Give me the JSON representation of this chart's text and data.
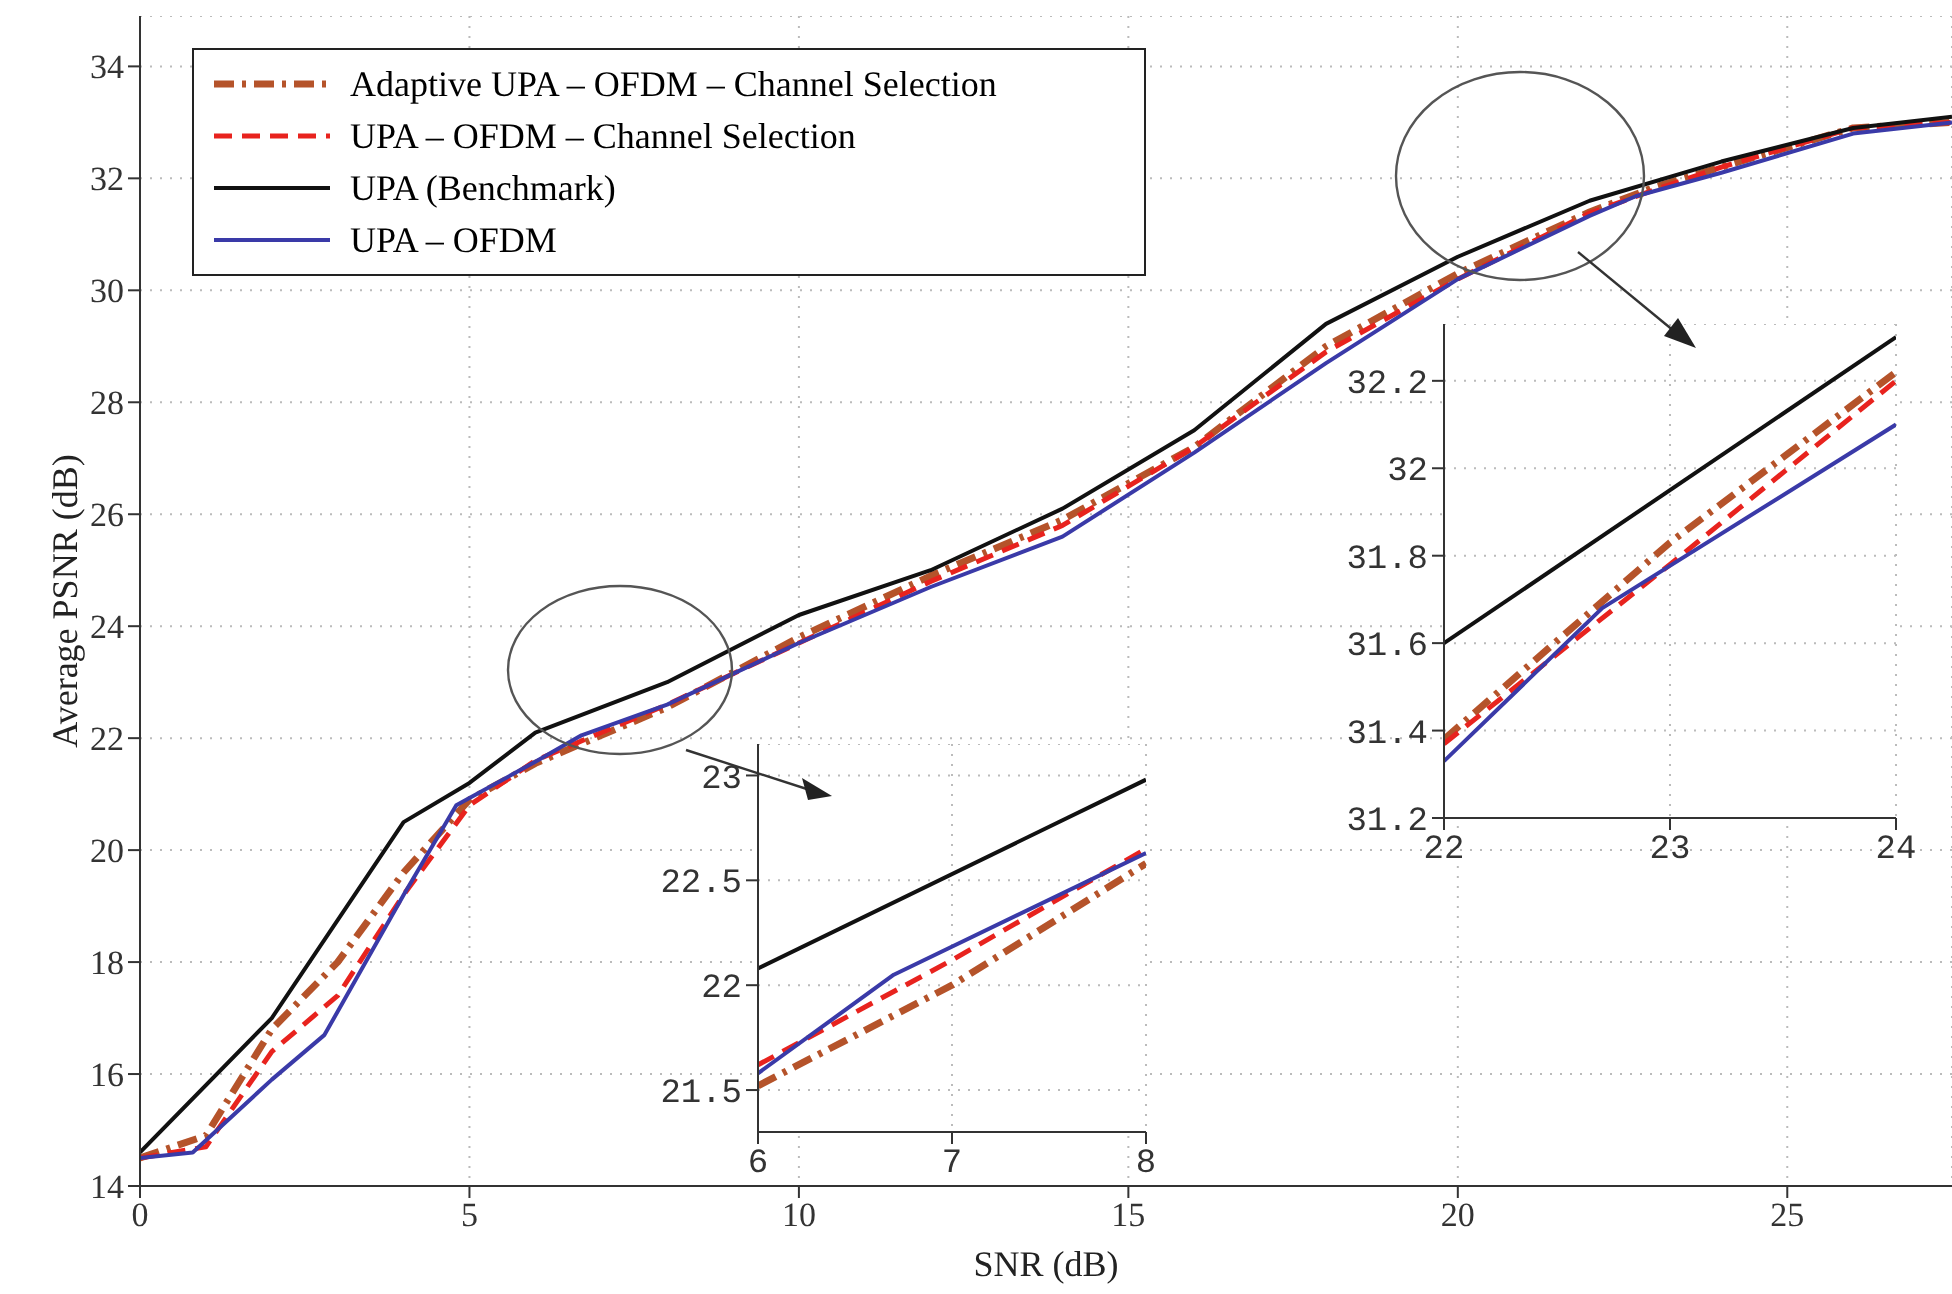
{
  "chart_data": [
    {
      "type": "line",
      "xlabel": "SNR (dB)",
      "ylabel": "Average PSNR (dB)",
      "xlim": [
        0,
        27.5
      ],
      "ylim": [
        14,
        34.9
      ],
      "xticks": [
        0,
        5,
        10,
        15,
        20,
        25
      ],
      "yticks": [
        14,
        16,
        18,
        20,
        22,
        24,
        26,
        28,
        30,
        32,
        34
      ],
      "grid": true,
      "legend": "top left",
      "marker": "none",
      "series": [
        {
          "name": "Adaptive UPA – OFDM – Channel Selection",
          "color": "#b5532a",
          "line_style": "dashdot",
          "x": [
            0,
            1,
            2,
            3,
            4,
            5,
            6,
            7,
            8,
            10,
            12,
            14,
            16,
            18,
            20,
            22,
            23,
            24,
            26,
            27.5
          ],
          "values": [
            14.5,
            14.9,
            16.8,
            18.0,
            19.6,
            20.9,
            21.55,
            22.05,
            22.55,
            23.8,
            24.9,
            25.9,
            27.2,
            29.0,
            30.3,
            31.4,
            31.85,
            32.2,
            32.9,
            33.0
          ]
        },
        {
          "name": "UPA – OFDM – Channel Selection",
          "color": "#e8231e",
          "line_style": "dashed",
          "x": [
            0,
            1,
            2,
            3,
            4,
            5,
            6,
            7,
            8,
            10,
            12,
            14,
            16,
            18,
            20,
            22,
            23,
            24,
            26,
            27.5
          ],
          "values": [
            14.5,
            14.7,
            16.4,
            17.4,
            19.2,
            20.8,
            21.6,
            22.1,
            22.6,
            23.7,
            24.8,
            25.8,
            27.2,
            28.9,
            30.2,
            31.38,
            31.8,
            32.2,
            32.9,
            33.0
          ]
        },
        {
          "name": "UPA (Benchmark)",
          "color": "#111111",
          "line_style": "solid",
          "x": [
            0,
            2,
            4,
            5,
            6,
            8,
            10,
            12,
            14,
            16,
            18,
            20,
            22,
            24,
            26,
            27.5
          ],
          "values": [
            14.6,
            17.0,
            20.5,
            21.2,
            22.1,
            23.0,
            24.2,
            25.0,
            26.1,
            27.5,
            29.4,
            30.6,
            31.6,
            32.3,
            32.9,
            33.1
          ]
        },
        {
          "name": "UPA – OFDM",
          "color": "#3a3aa8",
          "line_style": "solid",
          "x": [
            0,
            0.8,
            2,
            2.8,
            4,
            4.8,
            6,
            6.7,
            8,
            10,
            12,
            14,
            16,
            18,
            20,
            22,
            22.7,
            24,
            26,
            27.5
          ],
          "values": [
            14.5,
            14.6,
            15.9,
            16.7,
            19.2,
            20.8,
            21.58,
            22.05,
            22.6,
            23.7,
            24.7,
            25.6,
            27.1,
            28.7,
            30.2,
            31.33,
            31.68,
            32.1,
            32.8,
            33.0
          ]
        }
      ]
    },
    {
      "type": "line",
      "xlim": [
        6,
        8
      ],
      "ylim": [
        21.3,
        23.15
      ],
      "xticks": [
        6,
        7,
        8
      ],
      "yticks": [
        21.5,
        22,
        22.5,
        23
      ],
      "grid": true,
      "marker": "none",
      "series": [
        {
          "color": "#b5532a",
          "line_style": "dashdot",
          "x": [
            6,
            7,
            8
          ],
          "values": [
            21.52,
            22.0,
            22.58
          ]
        },
        {
          "color": "#e8231e",
          "line_style": "dashed",
          "x": [
            6,
            7,
            8
          ],
          "values": [
            21.62,
            22.12,
            22.65
          ]
        },
        {
          "color": "#111111",
          "line_style": "solid",
          "x": [
            6,
            8
          ],
          "values": [
            22.08,
            22.98
          ]
        },
        {
          "color": "#3a3aa8",
          "line_style": "solid",
          "x": [
            6,
            6.7,
            8
          ],
          "values": [
            21.58,
            22.05,
            22.63
          ]
        }
      ]
    },
    {
      "type": "line",
      "xlim": [
        22,
        24
      ],
      "ylim": [
        31.2,
        32.33
      ],
      "xticks": [
        22,
        23,
        24
      ],
      "yticks": [
        31.2,
        31.4,
        31.6,
        31.8,
        32,
        32.2
      ],
      "grid": true,
      "marker": "none",
      "series": [
        {
          "color": "#b5532a",
          "line_style": "dashdot",
          "x": [
            22,
            23,
            24
          ],
          "values": [
            31.38,
            31.83,
            32.22
          ]
        },
        {
          "color": "#e8231e",
          "line_style": "dashed",
          "x": [
            22,
            23,
            24
          ],
          "values": [
            31.37,
            31.78,
            32.2
          ]
        },
        {
          "color": "#111111",
          "line_style": "solid",
          "x": [
            22,
            24
          ],
          "values": [
            31.6,
            32.3
          ]
        },
        {
          "color": "#3a3aa8",
          "line_style": "solid",
          "x": [
            22,
            22.7,
            24
          ],
          "values": [
            31.33,
            31.68,
            32.1
          ]
        }
      ]
    }
  ]
}
